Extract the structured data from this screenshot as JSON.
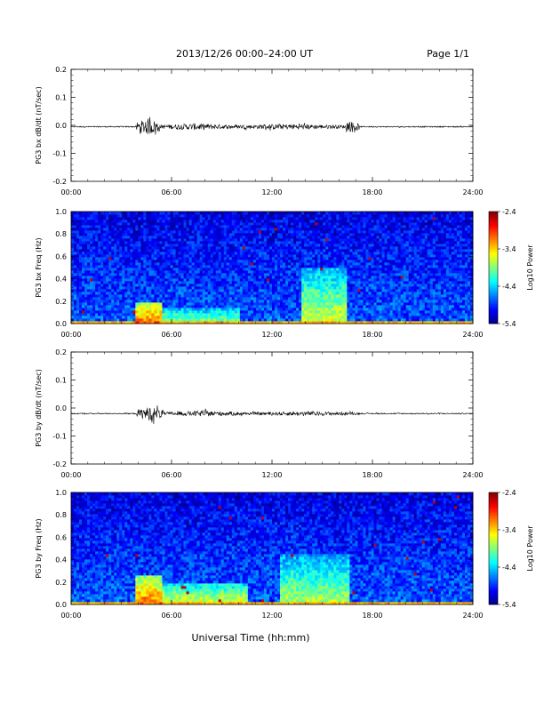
{
  "header": {
    "title": "2013/12/26  00:00–24:00 UT",
    "page": "Page 1/1"
  },
  "footer": {
    "xlabel": "Universal Time (hh:mm)"
  },
  "chart_data": [
    {
      "type": "line",
      "ylabel": "PG3 bx dB/dt (nT/sec)",
      "xlabel": "",
      "xlim": [
        0,
        24
      ],
      "ylim": [
        -0.2,
        0.2
      ],
      "xticks": [
        "00:00",
        "06:00",
        "12:00",
        "18:00",
        "24:00"
      ],
      "yticks": [
        "-0.2",
        "-0.1",
        "0.0",
        "0.1",
        "0.2"
      ],
      "baseline": -0.005,
      "activity": [
        {
          "start": 3.9,
          "end": 5.3,
          "amplitude": 0.03
        },
        {
          "start": 5.3,
          "end": 9.5,
          "amplitude": 0.012
        },
        {
          "start": 9.5,
          "end": 16.4,
          "amplitude": 0.01
        },
        {
          "start": 16.4,
          "end": 17.2,
          "amplitude": 0.02
        }
      ]
    },
    {
      "type": "heatmap",
      "ylabel": "PG3 bx Freq (Hz)",
      "xlim": [
        0,
        24
      ],
      "ylim": [
        0,
        1
      ],
      "xticks": [
        "00:00",
        "06:00",
        "12:00",
        "18:00",
        "24:00"
      ],
      "yticks": [
        "0.0",
        "0.2",
        "0.4",
        "0.6",
        "0.8",
        "1.0"
      ],
      "colorbar": {
        "label": "Log10 Power",
        "ticks": [
          "-2.4",
          "-3.4",
          "-4.4",
          "-5.4"
        ],
        "range": [
          -5.4,
          -2.4
        ]
      },
      "enhancements": [
        {
          "t0": 3.9,
          "t1": 5.5,
          "fmax": 0.2,
          "level": -3.0
        },
        {
          "t0": 5.5,
          "t1": 10.0,
          "fmax": 0.15,
          "level": -3.7
        },
        {
          "t0": 13.8,
          "t1": 16.4,
          "fmax": 0.5,
          "level": -3.6
        }
      ]
    },
    {
      "type": "line",
      "ylabel": "PG3 by dB/dt (nT/sec)",
      "xlabel": "",
      "xlim": [
        0,
        24
      ],
      "ylim": [
        -0.2,
        0.2
      ],
      "xticks": [
        "00:00",
        "06:00",
        "12:00",
        "18:00",
        "24:00"
      ],
      "yticks": [
        "-0.2",
        "-0.1",
        "0.0",
        "0.1",
        "0.2"
      ],
      "baseline": -0.02,
      "activity": [
        {
          "start": 3.9,
          "end": 5.5,
          "amplitude": 0.025
        },
        {
          "start": 5.5,
          "end": 10.5,
          "amplitude": 0.01
        },
        {
          "start": 10.5,
          "end": 17.2,
          "amplitude": 0.008
        }
      ]
    },
    {
      "type": "heatmap",
      "ylabel": "PG3 by Freq (Hz)",
      "xlim": [
        0,
        24
      ],
      "ylim": [
        0,
        1
      ],
      "xticks": [
        "00:00",
        "06:00",
        "12:00",
        "18:00",
        "24:00"
      ],
      "yticks": [
        "0.0",
        "0.2",
        "0.4",
        "0.6",
        "0.8",
        "1.0"
      ],
      "colorbar": {
        "label": "Log10 Power",
        "ticks": [
          "-2.4",
          "-3.4",
          "-4.4",
          "-5.4"
        ],
        "range": [
          -5.4,
          -2.4
        ]
      },
      "enhancements": [
        {
          "t0": 3.9,
          "t1": 5.5,
          "fmax": 0.25,
          "level": -3.0
        },
        {
          "t0": 5.5,
          "t1": 10.5,
          "fmax": 0.2,
          "level": -3.5
        },
        {
          "t0": 12.5,
          "t1": 16.6,
          "fmax": 0.45,
          "level": -3.7
        }
      ]
    }
  ]
}
